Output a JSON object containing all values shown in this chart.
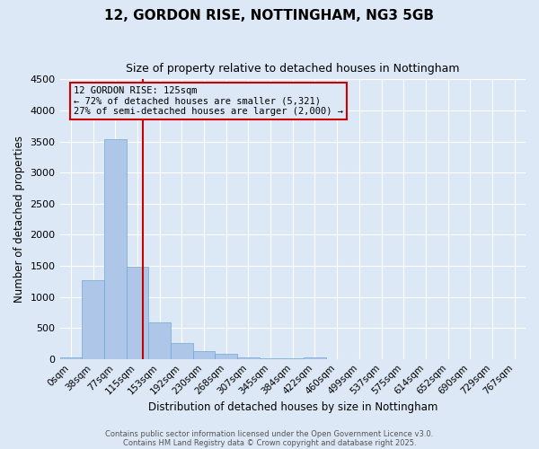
{
  "title_line1": "12, GORDON RISE, NOTTINGHAM, NG3 5GB",
  "title_line2": "Size of property relative to detached houses in Nottingham",
  "xlabel": "Distribution of detached houses by size in Nottingham",
  "ylabel": "Number of detached properties",
  "bar_labels": [
    "0sqm",
    "38sqm",
    "77sqm",
    "115sqm",
    "153sqm",
    "192sqm",
    "230sqm",
    "268sqm",
    "307sqm",
    "345sqm",
    "384sqm",
    "422sqm",
    "460sqm",
    "499sqm",
    "537sqm",
    "575sqm",
    "614sqm",
    "652sqm",
    "690sqm",
    "729sqm",
    "767sqm"
  ],
  "bar_values": [
    30,
    1270,
    3530,
    1490,
    590,
    250,
    130,
    80,
    30,
    10,
    10,
    30,
    0,
    0,
    0,
    0,
    0,
    0,
    0,
    0,
    0
  ],
  "bar_color": "#aec6e8",
  "bar_edge_color": "#6fa8d0",
  "bar_width": 1.0,
  "ylim": [
    0,
    4500
  ],
  "yticks": [
    0,
    500,
    1000,
    1500,
    2000,
    2500,
    3000,
    3500,
    4000,
    4500
  ],
  "annotation_text": "12 GORDON RISE: 125sqm\n← 72% of detached houses are smaller (5,321)\n27% of semi-detached houses are larger (2,000) →",
  "annotation_box_color": "#cc0000",
  "background_color": "#dce8f5",
  "grid_color": "#ffffff",
  "footer_line1": "Contains HM Land Registry data © Crown copyright and database right 2025.",
  "footer_line2": "Contains public sector information licensed under the Open Government Licence v3.0."
}
